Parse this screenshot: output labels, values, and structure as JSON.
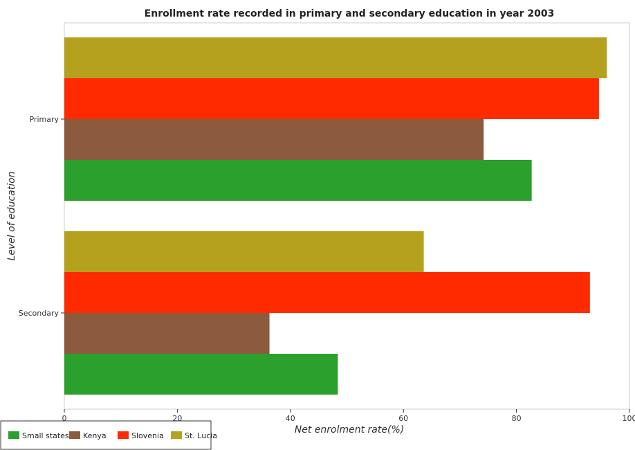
{
  "chart_data": {
    "type": "bar",
    "orientation": "horizontal",
    "title": "Enrollment rate recorded in primary and secondary education in year 2003",
    "xlabel": "Net enrolment rate(%)",
    "ylabel": "Level of education",
    "categories": [
      "Primary",
      "Secondary"
    ],
    "series": [
      {
        "name": "Small states",
        "color": "#2ca02c",
        "values": [
          82.7,
          48.4
        ]
      },
      {
        "name": "Kenya",
        "color": "#8c5a3c",
        "values": [
          74.2,
          36.3
        ]
      },
      {
        "name": "Slovenia",
        "color": "#ff2a00",
        "values": [
          94.6,
          93.0
        ]
      },
      {
        "name": "St. Lucia",
        "color": "#b5a11e",
        "values": [
          96.0,
          63.6
        ]
      }
    ],
    "xlim": [
      0,
      100
    ],
    "xticks": [
      "0",
      "20",
      "40",
      "60",
      "80",
      "100"
    ],
    "grid": false,
    "legend_position": "bottom-left"
  }
}
